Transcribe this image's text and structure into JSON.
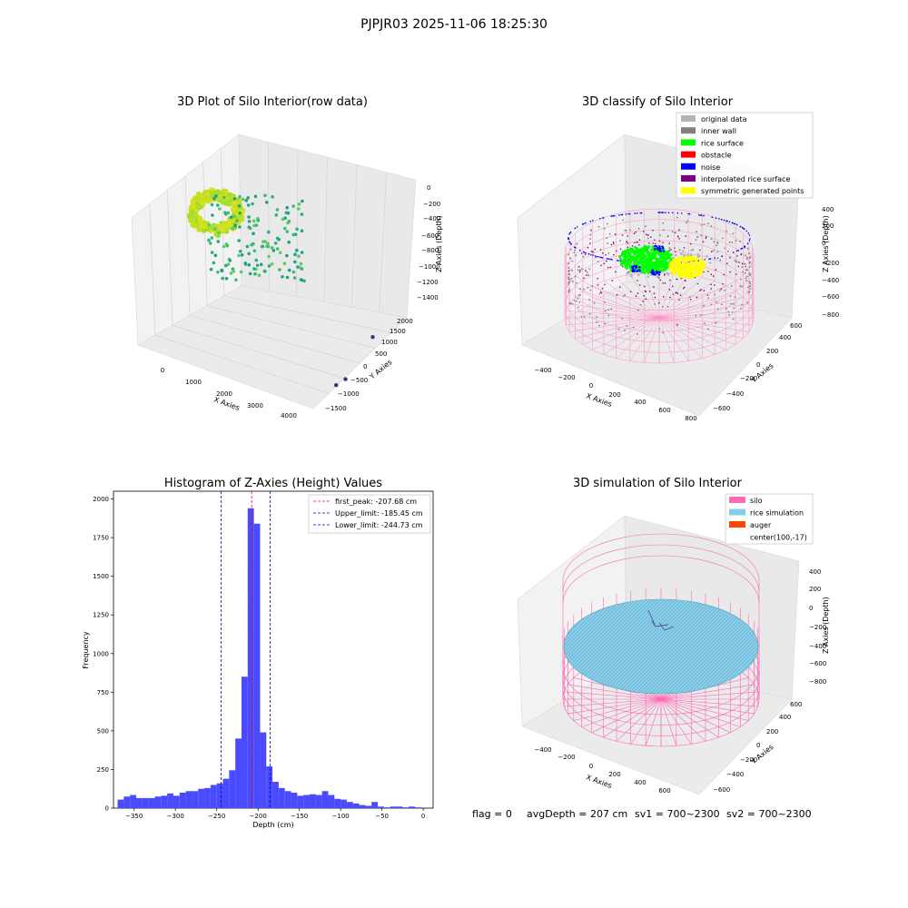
{
  "figure_title": "PJPJR03 2025-11-06 18:25:30",
  "footer": {
    "flag": "flag = 0",
    "avg_depth": "avgDepth = 207 cm",
    "sv1": "sv1 = 700~2300",
    "sv2": "sv2 = 700~2300"
  },
  "colors": {
    "bar": "#4a4aff",
    "first_peak": "#ff0000",
    "limit": "#0000cc",
    "silo": "#ff69b4",
    "rice_sim": "#87ceeb",
    "auger": "#ff4500",
    "rice_surface": "#00ff00",
    "noise": "#0000ff",
    "inner_wall": "#808080",
    "original": "#b3b3b3",
    "obstacle": "#ff0000",
    "interp": "#800080",
    "sym": "#ffff00"
  },
  "chart_data": [
    {
      "type": "scatter3d",
      "title": "3D Plot of Silo Interior(row data)",
      "xlabel": "X Axies",
      "ylabel": "Y Axies",
      "zlabel": "Z Axies (Depth)",
      "x_ticks": [
        "0",
        "1000",
        "2000",
        "3000",
        "4000"
      ],
      "y_ticks": [
        "−1500",
        "−1000",
        "−500",
        "0",
        "500",
        "1000",
        "1500",
        "2000"
      ],
      "z_ticks": [
        "0",
        "−200",
        "−400",
        "−600",
        "−800",
        "−1000",
        "−1200",
        "−1400"
      ],
      "outlier_points": [
        {
          "x": 3650,
          "y": -700,
          "z": -1400
        },
        {
          "x": 3900,
          "y": -400,
          "z": -1350
        },
        {
          "x": 4300,
          "y": 1200,
          "z": -1300
        }
      ]
    },
    {
      "type": "scatter3d",
      "title": "3D classify of Silo Interior",
      "xlabel": "X Axies",
      "ylabel": "Y Axies",
      "zlabel": "Z Axies (Depth)",
      "x_ticks": [
        "−400",
        "−200",
        "0",
        "200",
        "400",
        "600",
        "800"
      ],
      "y_ticks": [
        "−600",
        "−400",
        "−200",
        "0",
        "200",
        "400",
        "600"
      ],
      "z_ticks": [
        "400",
        "200",
        "0",
        "−200",
        "−400",
        "−600",
        "−800"
      ],
      "legend": [
        "original data",
        "inner wall",
        "rice surface",
        "obstacle",
        "noise",
        "interpolated rice surface",
        "symmetric generated points"
      ],
      "legend_position": "upper right"
    },
    {
      "type": "bar",
      "title": "Histogram of Z-Axies (Height) Values",
      "xlabel": "Depth (cm)",
      "ylabel": "Frequency",
      "xlim": [
        -375,
        12
      ],
      "ylim": [
        0,
        2050
      ],
      "bin_width": 7.5,
      "bin_start": -370,
      "counts": [
        55,
        75,
        85,
        65,
        65,
        65,
        75,
        80,
        95,
        80,
        100,
        110,
        110,
        125,
        130,
        150,
        160,
        190,
        245,
        450,
        850,
        1940,
        1840,
        490,
        270,
        170,
        130,
        110,
        100,
        80,
        85,
        90,
        85,
        110,
        85,
        60,
        55,
        40,
        30,
        20,
        15,
        40,
        10,
        5,
        10,
        10,
        5,
        10,
        5
      ],
      "x_ticks": [
        "−350",
        "−300",
        "−250",
        "−200",
        "−150",
        "−100",
        "−50",
        "0"
      ],
      "y_ticks": [
        "0",
        "250",
        "500",
        "750",
        "1000",
        "1250",
        "1500",
        "1750",
        "2000"
      ],
      "vlines": [
        {
          "label": "first_peak: -207.68 cm",
          "x": -207.68
        },
        {
          "label": "Upper_limit: -185.45 cm",
          "x": -185.45
        },
        {
          "label": "Lower_limit: -244.73 cm",
          "x": -244.73
        }
      ],
      "legend_position": "upper right"
    },
    {
      "type": "surface3d",
      "title": "3D simulation of Silo Interior",
      "xlabel": "X Axies",
      "ylabel": "Y Axies",
      "zlabel": "Z Axies (Depth)",
      "x_ticks": [
        "−400",
        "−200",
        "0",
        "200",
        "400",
        "600"
      ],
      "y_ticks": [
        "−600",
        "−400",
        "−200",
        "0",
        "200",
        "400",
        "600"
      ],
      "z_ticks": [
        "400",
        "200",
        "0",
        "−200",
        "−400",
        "−600",
        "−800"
      ],
      "legend": [
        "silo",
        "rice simulation",
        "auger",
        "center(100,-17)"
      ],
      "legend_position": "upper right"
    }
  ]
}
